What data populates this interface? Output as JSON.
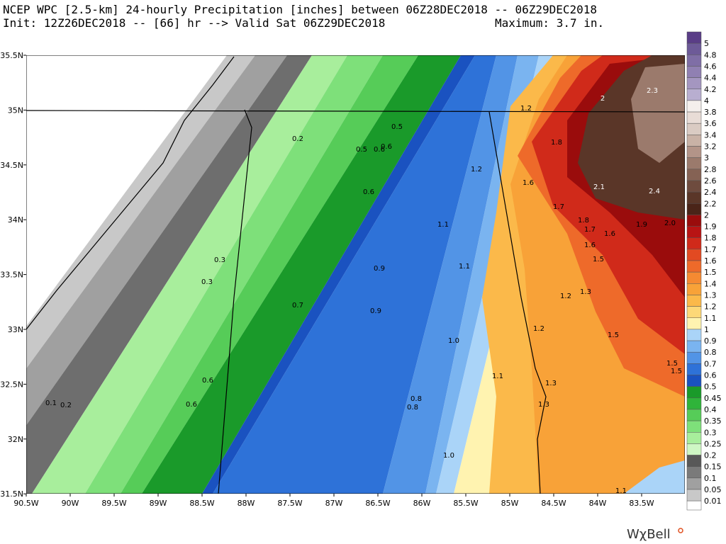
{
  "header": {
    "line1": "NCEP WPC [2.5-km] 24-hourly Precipitation [inches] between 06Z28DEC2018 -- 06Z29DEC2018",
    "line2": "Init: 12Z26DEC2018 -- [66] hr --> Valid Sat 06Z29DEC2018",
    "maximum": "Maximum: 3.7 in."
  },
  "lat_labels": [
    "35.5N",
    "35N",
    "34.5N",
    "34N",
    "33.5N",
    "33N",
    "32.5N",
    "32N",
    "31.5N"
  ],
  "lon_labels": [
    "90.5W",
    "90W",
    "89.5W",
    "89W",
    "88.5W",
    "88W",
    "87.5W",
    "87W",
    "86.5W",
    "86W",
    "85.5W",
    "85W",
    "84.5W",
    "84W",
    "83.5W"
  ],
  "colorbar": {
    "levels": [
      {
        "label": "5",
        "color": "#5a3d87"
      },
      {
        "label": "4.8",
        "color": "#6d5a98"
      },
      {
        "label": "4.6",
        "color": "#7f6ea6"
      },
      {
        "label": "4.4",
        "color": "#9080b2"
      },
      {
        "label": "4.2",
        "color": "#a496c0"
      },
      {
        "label": "4",
        "color": "#b8aed0"
      },
      {
        "label": "3.8",
        "color": "#f4efec"
      },
      {
        "label": "3.6",
        "color": "#e8dcd6"
      },
      {
        "label": "3.4",
        "color": "#dacbc3"
      },
      {
        "label": "3.2",
        "color": "#c9b2a6"
      },
      {
        "label": "3",
        "color": "#b39488"
      },
      {
        "label": "2.8",
        "color": "#9b7a6c"
      },
      {
        "label": "2.6",
        "color": "#856254"
      },
      {
        "label": "2.4",
        "color": "#6e4b3e"
      },
      {
        "label": "2.2",
        "color": "#5a3628"
      },
      {
        "label": "2",
        "color": "#4a2418"
      },
      {
        "label": "1.9",
        "color": "#9a0c0c"
      },
      {
        "label": "1.8",
        "color": "#b81414"
      },
      {
        "label": "1.7",
        "color": "#d02a1a"
      },
      {
        "label": "1.6",
        "color": "#e24a22"
      },
      {
        "label": "1.5",
        "color": "#ee6a2a"
      },
      {
        "label": "1.4",
        "color": "#f58a32"
      },
      {
        "label": "1.3",
        "color": "#f8a238"
      },
      {
        "label": "1.2",
        "color": "#fbb94a"
      },
      {
        "label": "1.1",
        "color": "#fdd878"
      },
      {
        "label": "1",
        "color": "#fff3b0"
      },
      {
        "label": "0.9",
        "color": "#aad4f8"
      },
      {
        "label": "0.8",
        "color": "#7ab4f0"
      },
      {
        "label": "0.7",
        "color": "#5294e6"
      },
      {
        "label": "0.6",
        "color": "#2e72d8"
      },
      {
        "label": "0.5",
        "color": "#1a52c0"
      },
      {
        "label": "0.45",
        "color": "#1a9a2a"
      },
      {
        "label": "0.4",
        "color": "#2fb43a"
      },
      {
        "label": "0.35",
        "color": "#56cc58"
      },
      {
        "label": "0.3",
        "color": "#7ee07a"
      },
      {
        "label": "0.25",
        "color": "#a8ee9c"
      },
      {
        "label": "0.2",
        "color": "#cff7c4"
      },
      {
        "label": "0.15",
        "color": "#585858"
      },
      {
        "label": "0.1",
        "color": "#7a7a7a"
      },
      {
        "label": "0.05",
        "color": "#a0a0a0"
      },
      {
        "label": "0.01",
        "color": "#c8c8c8"
      }
    ]
  },
  "contour_labels": [
    "0.2",
    "0.5",
    "0.5",
    "0.6",
    "0.6",
    "0.6",
    "0.3",
    "0.3",
    "0.7",
    "0.9",
    "0.9",
    "1.1",
    "1.1",
    "1.0",
    "0.6",
    "0.6",
    "0.1",
    "0.2",
    "0.8",
    "0.8",
    "1.0",
    "1.1",
    "1.2",
    "1.2",
    "1.6",
    "1.7",
    "1.8",
    "1.7",
    "1.6",
    "1.9",
    "2.0",
    "1.6",
    "1.5",
    "1.3",
    "1.2",
    "1.2",
    "1.5",
    "1.5",
    "1.5",
    "1.3",
    "1.3",
    "2",
    "2.3",
    "2.1",
    "2.4",
    "1.8",
    "1.1"
  ],
  "logo": "WχBell"
}
